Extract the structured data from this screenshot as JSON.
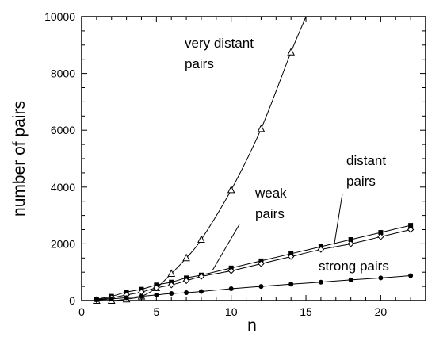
{
  "chart_data": {
    "type": "line",
    "title": "",
    "xlabel": "n",
    "ylabel": "number of pairs",
    "xlim": [
      0,
      23
    ],
    "ylim": [
      0,
      10000
    ],
    "x_ticks": [
      0,
      5,
      10,
      15,
      20
    ],
    "y_ticks": [
      0,
      2000,
      4000,
      6000,
      8000,
      10000
    ],
    "grid": false,
    "series": [
      {
        "name": "very distant pairs",
        "marker": "open-triangle",
        "x": [
          1,
          2,
          3,
          4,
          5,
          6,
          7,
          8,
          10,
          12,
          14,
          15
        ],
        "y": [
          0,
          0,
          50,
          150,
          450,
          950,
          1500,
          2150,
          3900,
          6050,
          8750,
          10000
        ]
      },
      {
        "name": "distant pairs",
        "marker": "filled-square",
        "x": [
          1,
          2,
          3,
          4,
          5,
          6,
          7,
          8,
          10,
          12,
          14,
          16,
          18,
          20,
          22
        ],
        "y": [
          50,
          150,
          300,
          400,
          550,
          650,
          800,
          900,
          1150,
          1400,
          1650,
          1900,
          2150,
          2400,
          2650
        ]
      },
      {
        "name": "weak pairs",
        "marker": "open-diamond",
        "x": [
          1,
          2,
          3,
          4,
          5,
          6,
          7,
          8,
          10,
          12,
          14,
          16,
          18,
          20,
          22
        ],
        "y": [
          30,
          100,
          200,
          300,
          450,
          550,
          700,
          850,
          1050,
          1300,
          1550,
          1800,
          2000,
          2250,
          2500
        ]
      },
      {
        "name": "strong pairs",
        "marker": "filled-circle",
        "x": [
          1,
          2,
          3,
          4,
          5,
          6,
          7,
          8,
          10,
          12,
          14,
          16,
          18,
          20,
          22
        ],
        "y": [
          20,
          60,
          100,
          150,
          200,
          250,
          280,
          320,
          420,
          500,
          580,
          650,
          730,
          800,
          880
        ]
      }
    ],
    "annotations": [
      {
        "lines": [
          "very distant",
          "pairs"
        ]
      },
      {
        "lines": [
          "weak",
          "pairs"
        ]
      },
      {
        "lines": [
          "distant",
          "pairs"
        ]
      },
      {
        "lines": [
          "strong pairs"
        ]
      }
    ]
  }
}
